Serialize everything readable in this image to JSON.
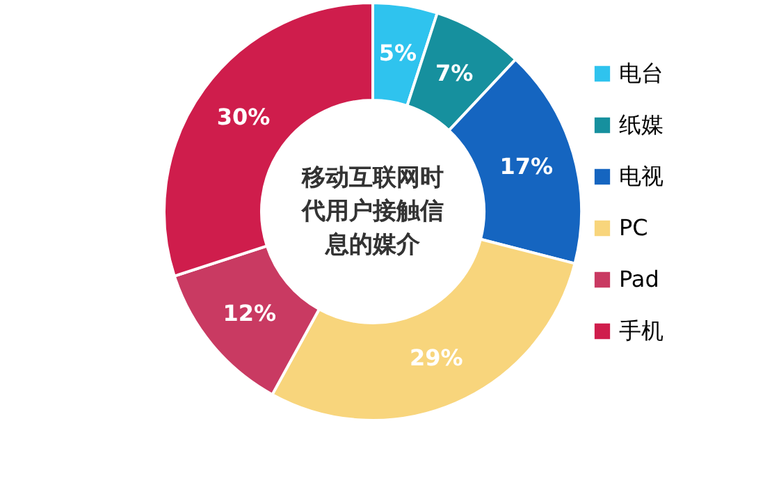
{
  "chart_data": {
    "type": "donut",
    "title": "移动互联网时代用户接触信息的媒介",
    "categories": [
      "电台",
      "纸媒",
      "电视",
      "PC",
      "Pad",
      "手机"
    ],
    "values": [
      5,
      7,
      17,
      29,
      12,
      30
    ],
    "colors": [
      "#2fc3ee",
      "#16909e",
      "#1565c0",
      "#f8d57c",
      "#c93a62",
      "#cf1d4c"
    ],
    "value_labels": [
      "5%",
      "7%",
      "17%",
      "29%",
      "12%",
      "30%"
    ],
    "legend": "right"
  }
}
